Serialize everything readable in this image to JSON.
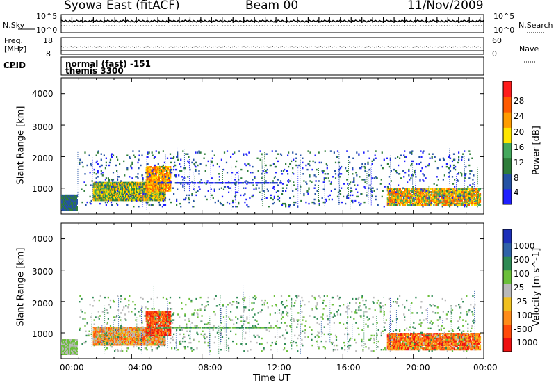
{
  "header": {
    "title": "Syowa East (fitACF)",
    "beam": "Beam 00",
    "date": "11/Nov/2009"
  },
  "top_panels": {
    "nsky_label": "N.Sky",
    "nsky_ticks": [
      "10^5",
      "10^0"
    ],
    "nsearch_label": "N.Search",
    "nsearch_ticks": [
      "10^5",
      "10^0"
    ],
    "freq_label_1": "Freq.",
    "freq_label_2": "[MHz]",
    "freq_ticks": [
      "18",
      "8"
    ],
    "nave_label": "Nave",
    "nave_ticks": [
      "60",
      "0"
    ],
    "cpid_label": "CPID",
    "cpid_lines": [
      "normal (fast) -151",
      "themis 3300"
    ]
  },
  "chart_data": [
    {
      "type": "heatmap",
      "name": "power",
      "ylabel": "Slant Range [km]",
      "y_ticks": [
        "4000",
        "3000",
        "2000",
        "1000"
      ],
      "ylim": [
        180,
        4500
      ],
      "xlim": [
        0,
        24
      ],
      "colorbar": {
        "label": "Power [dB]",
        "ticks": [
          "28",
          "24",
          "20",
          "16",
          "12",
          "8",
          "4"
        ],
        "range": [
          0,
          32
        ],
        "colors": [
          "#1f1fff",
          "#2452a4",
          "#2e7d3a",
          "#44a85c",
          "#ffe600",
          "#ff9c00",
          "#ff5a00",
          "#ff1c1c"
        ]
      }
    },
    {
      "type": "heatmap",
      "name": "velocity",
      "ylabel": "Slant Range [km]",
      "xlabel": "Time UT",
      "y_ticks": [
        "4000",
        "3000",
        "2000",
        "1000"
      ],
      "x_ticks": [
        "00:00",
        "04:00",
        "08:00",
        "12:00",
        "16:00",
        "20:00",
        "00:00"
      ],
      "ylim": [
        180,
        4500
      ],
      "xlim": [
        0,
        24
      ],
      "colorbar": {
        "label": "Velocity [m s^-1]",
        "ticks": [
          "1000",
          "500",
          "100",
          "25",
          "-25",
          "-100",
          "-500",
          "-1000"
        ],
        "colors": [
          "#1c2fb8",
          "#2f62a8",
          "#2e8a54",
          "#6bbf3a",
          "#b9b9b9",
          "#f0c020",
          "#ff8c1a",
          "#ff4a0a",
          "#ee1010"
        ]
      }
    }
  ]
}
